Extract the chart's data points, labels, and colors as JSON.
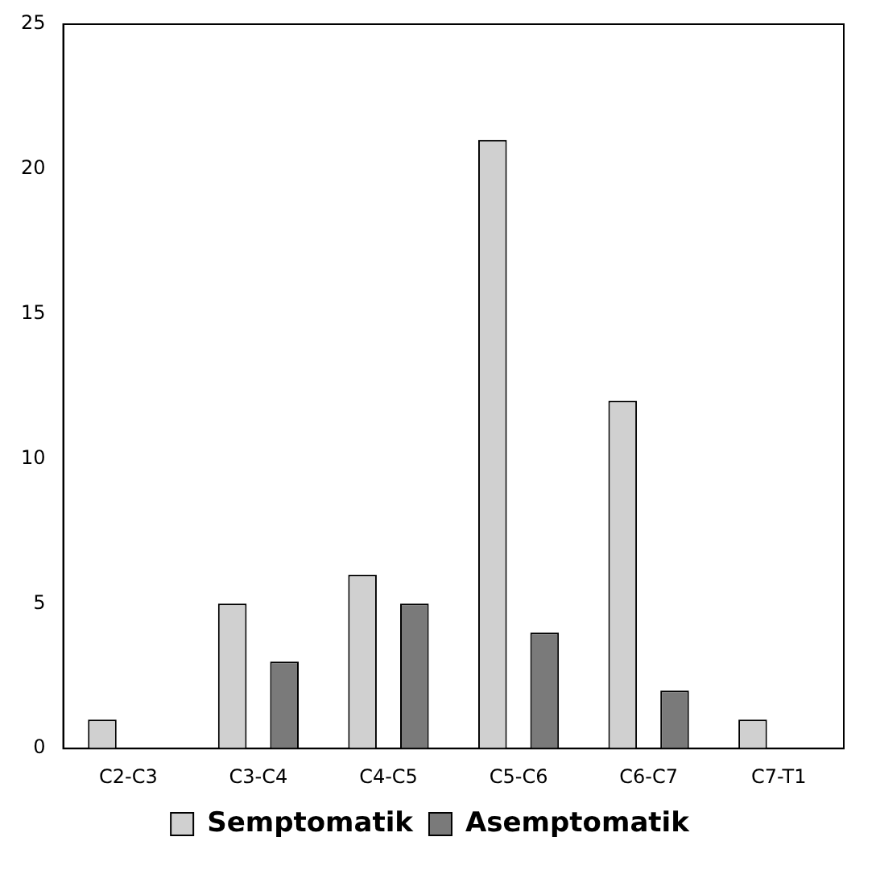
{
  "chart_data": {
    "type": "bar",
    "categories": [
      "C2-C3",
      "C3-C4",
      "C4-C5",
      "C5-C6",
      "C6-C7",
      "C7-T1"
    ],
    "series": [
      {
        "name": "Semptomatik",
        "color": "#d0d0d0",
        "values": [
          1,
          5,
          6,
          21,
          12,
          1
        ]
      },
      {
        "name": "Asemptomatik",
        "color": "#7a7a7a",
        "values": [
          null,
          3,
          5,
          4,
          2,
          null
        ]
      }
    ],
    "ylim": [
      0,
      25
    ],
    "yticks": [
      0,
      5,
      10,
      15,
      20,
      25
    ],
    "grid": false,
    "legend": "bottom"
  }
}
